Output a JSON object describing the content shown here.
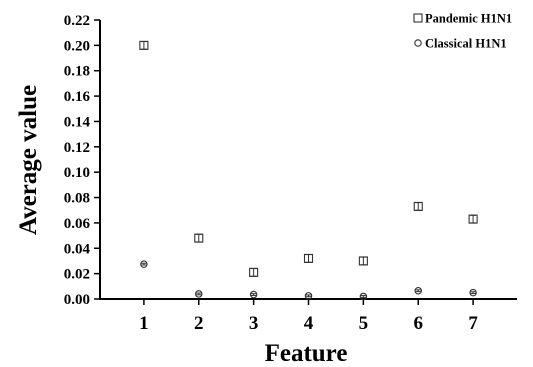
{
  "chart_data": {
    "type": "scatter",
    "title": "",
    "xlabel": "Feature",
    "ylabel": "Average value",
    "categories": [
      "1",
      "2",
      "3",
      "4",
      "5",
      "6",
      "7"
    ],
    "x": [
      1,
      2,
      3,
      4,
      5,
      6,
      7
    ],
    "xlim": [
      0.2,
      7.8
    ],
    "ylim": [
      0,
      0.22
    ],
    "yticks": [
      "0.00",
      "0.02",
      "0.04",
      "0.06",
      "0.08",
      "0.10",
      "0.12",
      "0.14",
      "0.16",
      "0.18",
      "0.20",
      "0.22"
    ],
    "grid": false,
    "legend_position": "top-right",
    "series": [
      {
        "name": "Pandemic H1N1",
        "marker": "square",
        "values": [
          0.2,
          0.048,
          0.021,
          0.032,
          0.03,
          0.073,
          0.063
        ],
        "error": [
          0.003,
          0.003,
          0.003,
          0.003,
          0.003,
          0.003,
          0.003
        ]
      },
      {
        "name": "Classical H1N1",
        "marker": "circle",
        "values": [
          0.0275,
          0.004,
          0.0035,
          0.0025,
          0.002,
          0.0065,
          0.005
        ],
        "error": [
          0.0007,
          0.0007,
          0.0007,
          0.0007,
          0.0007,
          0.0007,
          0.0007
        ]
      }
    ],
    "colors": {
      "marker": "#333333",
      "axis": "#000000"
    }
  }
}
